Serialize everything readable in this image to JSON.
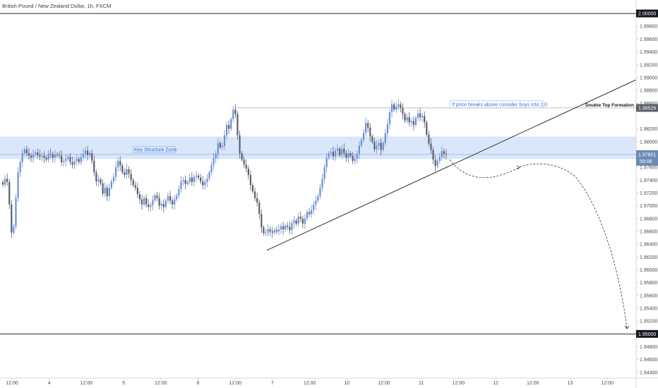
{
  "chart_data": {
    "type": "candlestick",
    "title": "British Pound / New Zealand Dollar, 1h, FXCM",
    "ylim": [
      1.9431,
      2.0021
    ],
    "y_ticks": [
      "2.00000",
      "1.99800",
      "1.99600",
      "1.99400",
      "1.99200",
      "1.99000",
      "1.98800",
      "1.98600",
      "1.98526",
      "1.98200",
      "1.98000",
      "1.97801",
      "1.97600",
      "1.97400",
      "1.97200",
      "1.97000",
      "1.96800",
      "1.96600",
      "1.96400",
      "1.96200",
      "1.96000",
      "1.95800",
      "1.95600",
      "1.95400",
      "1.95200",
      "1.95000",
      "1.94800",
      "1.94600",
      "1.94400"
    ],
    "x_ticks": [
      "12:00",
      "4",
      "12:00",
      "5",
      "12:00",
      "6",
      "12:00",
      "7",
      "12:00",
      "10",
      "12:00",
      "11",
      "12:00",
      "12",
      "12:00",
      "13",
      "12:00"
    ],
    "current_price": "1.97801",
    "countdown": "59:08",
    "level_top": "2.00000",
    "level_bottom": "1.95000",
    "double_top_price": "1.98526",
    "key_zone": {
      "label": "Key Structure Zone",
      "top": 1.9808,
      "bottom": 1.9773
    },
    "buy_note": "If price breaks above consider buys into 2.0",
    "double_top_label": "Double Top Formation",
    "candles_close": [
      1.9733,
      1.9742,
      1.9737,
      1.9702,
      1.9658,
      1.9668,
      1.9712,
      1.9752,
      1.9768,
      1.9782,
      1.9788,
      1.9782,
      1.9778,
      1.9775,
      1.978,
      1.9783,
      1.9779,
      1.9777,
      1.9778,
      1.9775,
      1.9772,
      1.9781,
      1.978,
      1.9775,
      1.978,
      1.9779,
      1.9778,
      1.9768,
      1.977,
      1.9773,
      1.9776,
      1.9768,
      1.9764,
      1.977,
      1.9773,
      1.9768,
      1.9776,
      1.9781,
      1.9786,
      1.9779,
      1.9782,
      1.977,
      1.9752,
      1.9738,
      1.9741,
      1.9735,
      1.9719,
      1.9728,
      1.9715,
      1.9728,
      1.9738,
      1.9745,
      1.976,
      1.977,
      1.9763,
      1.9752,
      1.9748,
      1.9757,
      1.975,
      1.974,
      1.9732,
      1.9728,
      1.9718,
      1.971,
      1.9702,
      1.9712,
      1.9702,
      1.9698,
      1.9701,
      1.9709,
      1.9716,
      1.9712,
      1.97,
      1.9703,
      1.9698,
      1.9708,
      1.9715,
      1.9708,
      1.9702,
      1.971,
      1.9716,
      1.9726,
      1.9738,
      1.974,
      1.9734,
      1.9737,
      1.9744,
      1.9737,
      1.9745,
      1.9747,
      1.9744,
      1.9738,
      1.9732,
      1.9737,
      1.9742,
      1.9752,
      1.9763,
      1.9774,
      1.9781,
      1.9798,
      1.9791,
      1.9793,
      1.981,
      1.9826,
      1.982,
      1.9835,
      1.985,
      1.9843,
      1.981,
      1.9782,
      1.9772,
      1.9764,
      1.9758,
      1.9748,
      1.9732,
      1.9722,
      1.9712,
      1.9705,
      1.9687,
      1.9666,
      1.9657,
      1.9658,
      1.9663,
      1.966,
      1.9658,
      1.9662,
      1.966,
      1.9663,
      1.9668,
      1.9663,
      1.9669,
      1.9667,
      1.9662,
      1.9673,
      1.9677,
      1.9672,
      1.9683,
      1.968,
      1.9672,
      1.968,
      1.969,
      1.9687,
      1.9693,
      1.9702,
      1.9708,
      1.9715,
      1.9728,
      1.9742,
      1.976,
      1.9775,
      1.9782,
      1.9784,
      1.9777,
      1.9786,
      1.9789,
      1.9779,
      1.9789,
      1.9782,
      1.9775,
      1.9782,
      1.9778,
      1.977,
      1.9773,
      1.9781,
      1.9794,
      1.9803,
      1.9814,
      1.9829,
      1.9822,
      1.9808,
      1.98,
      1.9788,
      1.9794,
      1.9798,
      1.9787,
      1.9798,
      1.9813,
      1.9827,
      1.9846,
      1.9858,
      1.985,
      1.9855,
      1.9858,
      1.9853,
      1.9843,
      1.9833,
      1.9838,
      1.983,
      1.9832,
      1.9826,
      1.9837,
      1.9844,
      1.9838,
      1.984,
      1.983,
      1.9811,
      1.9797,
      1.9787,
      1.9772,
      1.9762,
      1.977,
      1.9776,
      1.9785,
      1.9781,
      1.978
    ]
  }
}
